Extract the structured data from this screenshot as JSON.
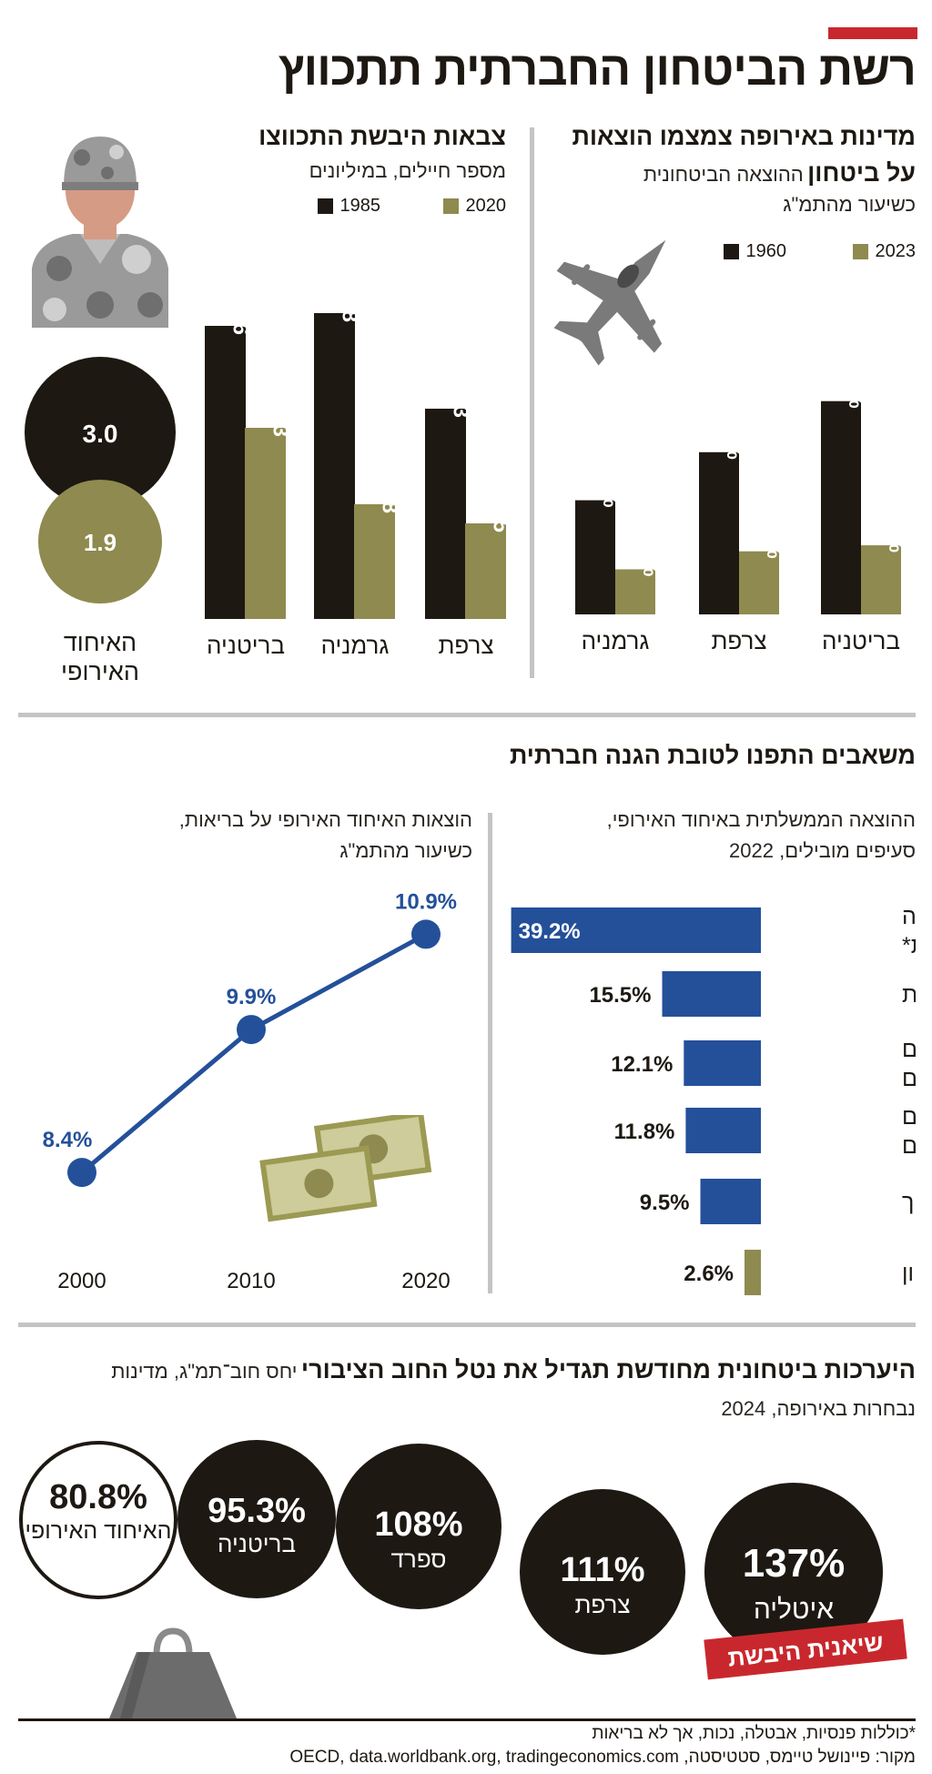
{
  "main_title": "רשת הביטחון החברתית תתכווץ",
  "defense_spending": {
    "title_line1": "מדינות באירופה צמצמו הוצאות",
    "title_line2_bold": "על ביטחון",
    "title_line2_rest": "ההוצאה הביטחונית",
    "subtitle": "כשיעור מהתמ\"ג",
    "legend": [
      "1960",
      "2023"
    ],
    "colors": {
      "1960": "#1d1812",
      "2023": "#8f8a4f"
    },
    "icon": "fighter-jet-icon"
  },
  "armies": {
    "title": "צבאות היבשת התכווצו",
    "subtitle": "מספר חיילים, במיליונים",
    "legend": [
      "1985",
      "2020"
    ],
    "eu_label_line1": "האיחוד",
    "eu_label_line2": "האירופי",
    "eu_1985": "3.0",
    "eu_2020": "1.9",
    "icon": "soldier-icon"
  },
  "social": {
    "title": "משאבים התפנו לטובת הגנה חברתית",
    "gov_subtitle_line1": "ההוצאה הממשלתית באיחוד האירופי,",
    "gov_subtitle_line2": "סעיפים מובילים, 2022",
    "health_subtitle_line1": "הוצאות האיחוד האירופי על בריאות,",
    "health_subtitle_line2": "כשיעור מהתמ\"ג",
    "icon": "money-bills-icon"
  },
  "debt": {
    "title_bold": "היערכות ביטחונית מחודשת תגדיל את נטל החוב הציבורי",
    "title_rest": "יחס חוב־תמ\"ג, מדינות",
    "subtitle": "נבחרות באירופה, 2024",
    "badge": "שיאנית היבשת",
    "icon": "weight-icon",
    "circles": [
      {
        "value": "137%",
        "label": "איטליה"
      },
      {
        "value": "111%",
        "label": "צרפת"
      },
      {
        "value": "108%",
        "label": "ספרד"
      },
      {
        "value": "95.3%",
        "label": "בריטניה"
      },
      {
        "value": "80.8%",
        "label": "האיחוד האירופי"
      }
    ]
  },
  "footnote": "*כוללות פנסיות, אבטלה, נכות, אך לא בריאות",
  "source": "מקור: פיינושל טיימס, סטטיסטה, OECD, data.worldbank.org, tradingeconomics.com",
  "chart_data": [
    {
      "type": "bar",
      "title": "מדינות באירופה צמצמו הוצאות על ביטחון",
      "ylabel": "ההוצאה הביטחונית כשיעור מהתמ\"ג",
      "categories": [
        "בריטניה",
        "צרפת",
        "גרמניה"
      ],
      "series": [
        {
          "name": "1960",
          "values": [
            7.1,
            5.4,
            3.8
          ],
          "labels": [
            "7.1%",
            "5.4%",
            "3.8%"
          ]
        },
        {
          "name": "2023",
          "values": [
            2.3,
            2.1,
            1.5
          ],
          "labels": [
            "2.3%",
            "2.1%",
            "1.5%"
          ]
        }
      ],
      "legend": "top"
    },
    {
      "type": "bar",
      "title": "צבאות היבשת התכווצו",
      "ylabel": "מספר חיילים, במיליונים",
      "categories": [
        "צרפת",
        "גרמניה",
        "בריטניה"
      ],
      "series": [
        {
          "name": "1985",
          "values": [
            0.33,
            0.48,
            0.46
          ],
          "labels": [
            "0.33",
            "0.48",
            "0.46"
          ]
        },
        {
          "name": "2020",
          "values": [
            0.15,
            0.18,
            0.3
          ],
          "labels": [
            "0.15",
            "0.18",
            "0.3"
          ]
        }
      ],
      "legend": "top"
    },
    {
      "type": "bar",
      "title": "ההוצאה הממשלתית באיחוד האירופי, סעיפים מובילים, 2022",
      "categories": [
        "הגנה חברתית*",
        "בריאות",
        "שירותים ציבוריים",
        "נושאים כלכליים",
        "חינוך",
        "ביטחון"
      ],
      "values": [
        39.2,
        15.5,
        12.1,
        11.8,
        9.5,
        2.6
      ],
      "labels": [
        "39.2%",
        "15.5%",
        "12.1%",
        "11.8%",
        "9.5%",
        "2.6%"
      ],
      "orientation": "horizontal"
    },
    {
      "type": "line",
      "title": "הוצאות האיחוד האירופי על בריאות, כשיעור מהתמ\"ג",
      "x": [
        "2000",
        "2010",
        "2020"
      ],
      "y": [
        8.4,
        9.9,
        10.9
      ],
      "labels": [
        "8.4%",
        "9.9%",
        "10.9%"
      ]
    }
  ]
}
